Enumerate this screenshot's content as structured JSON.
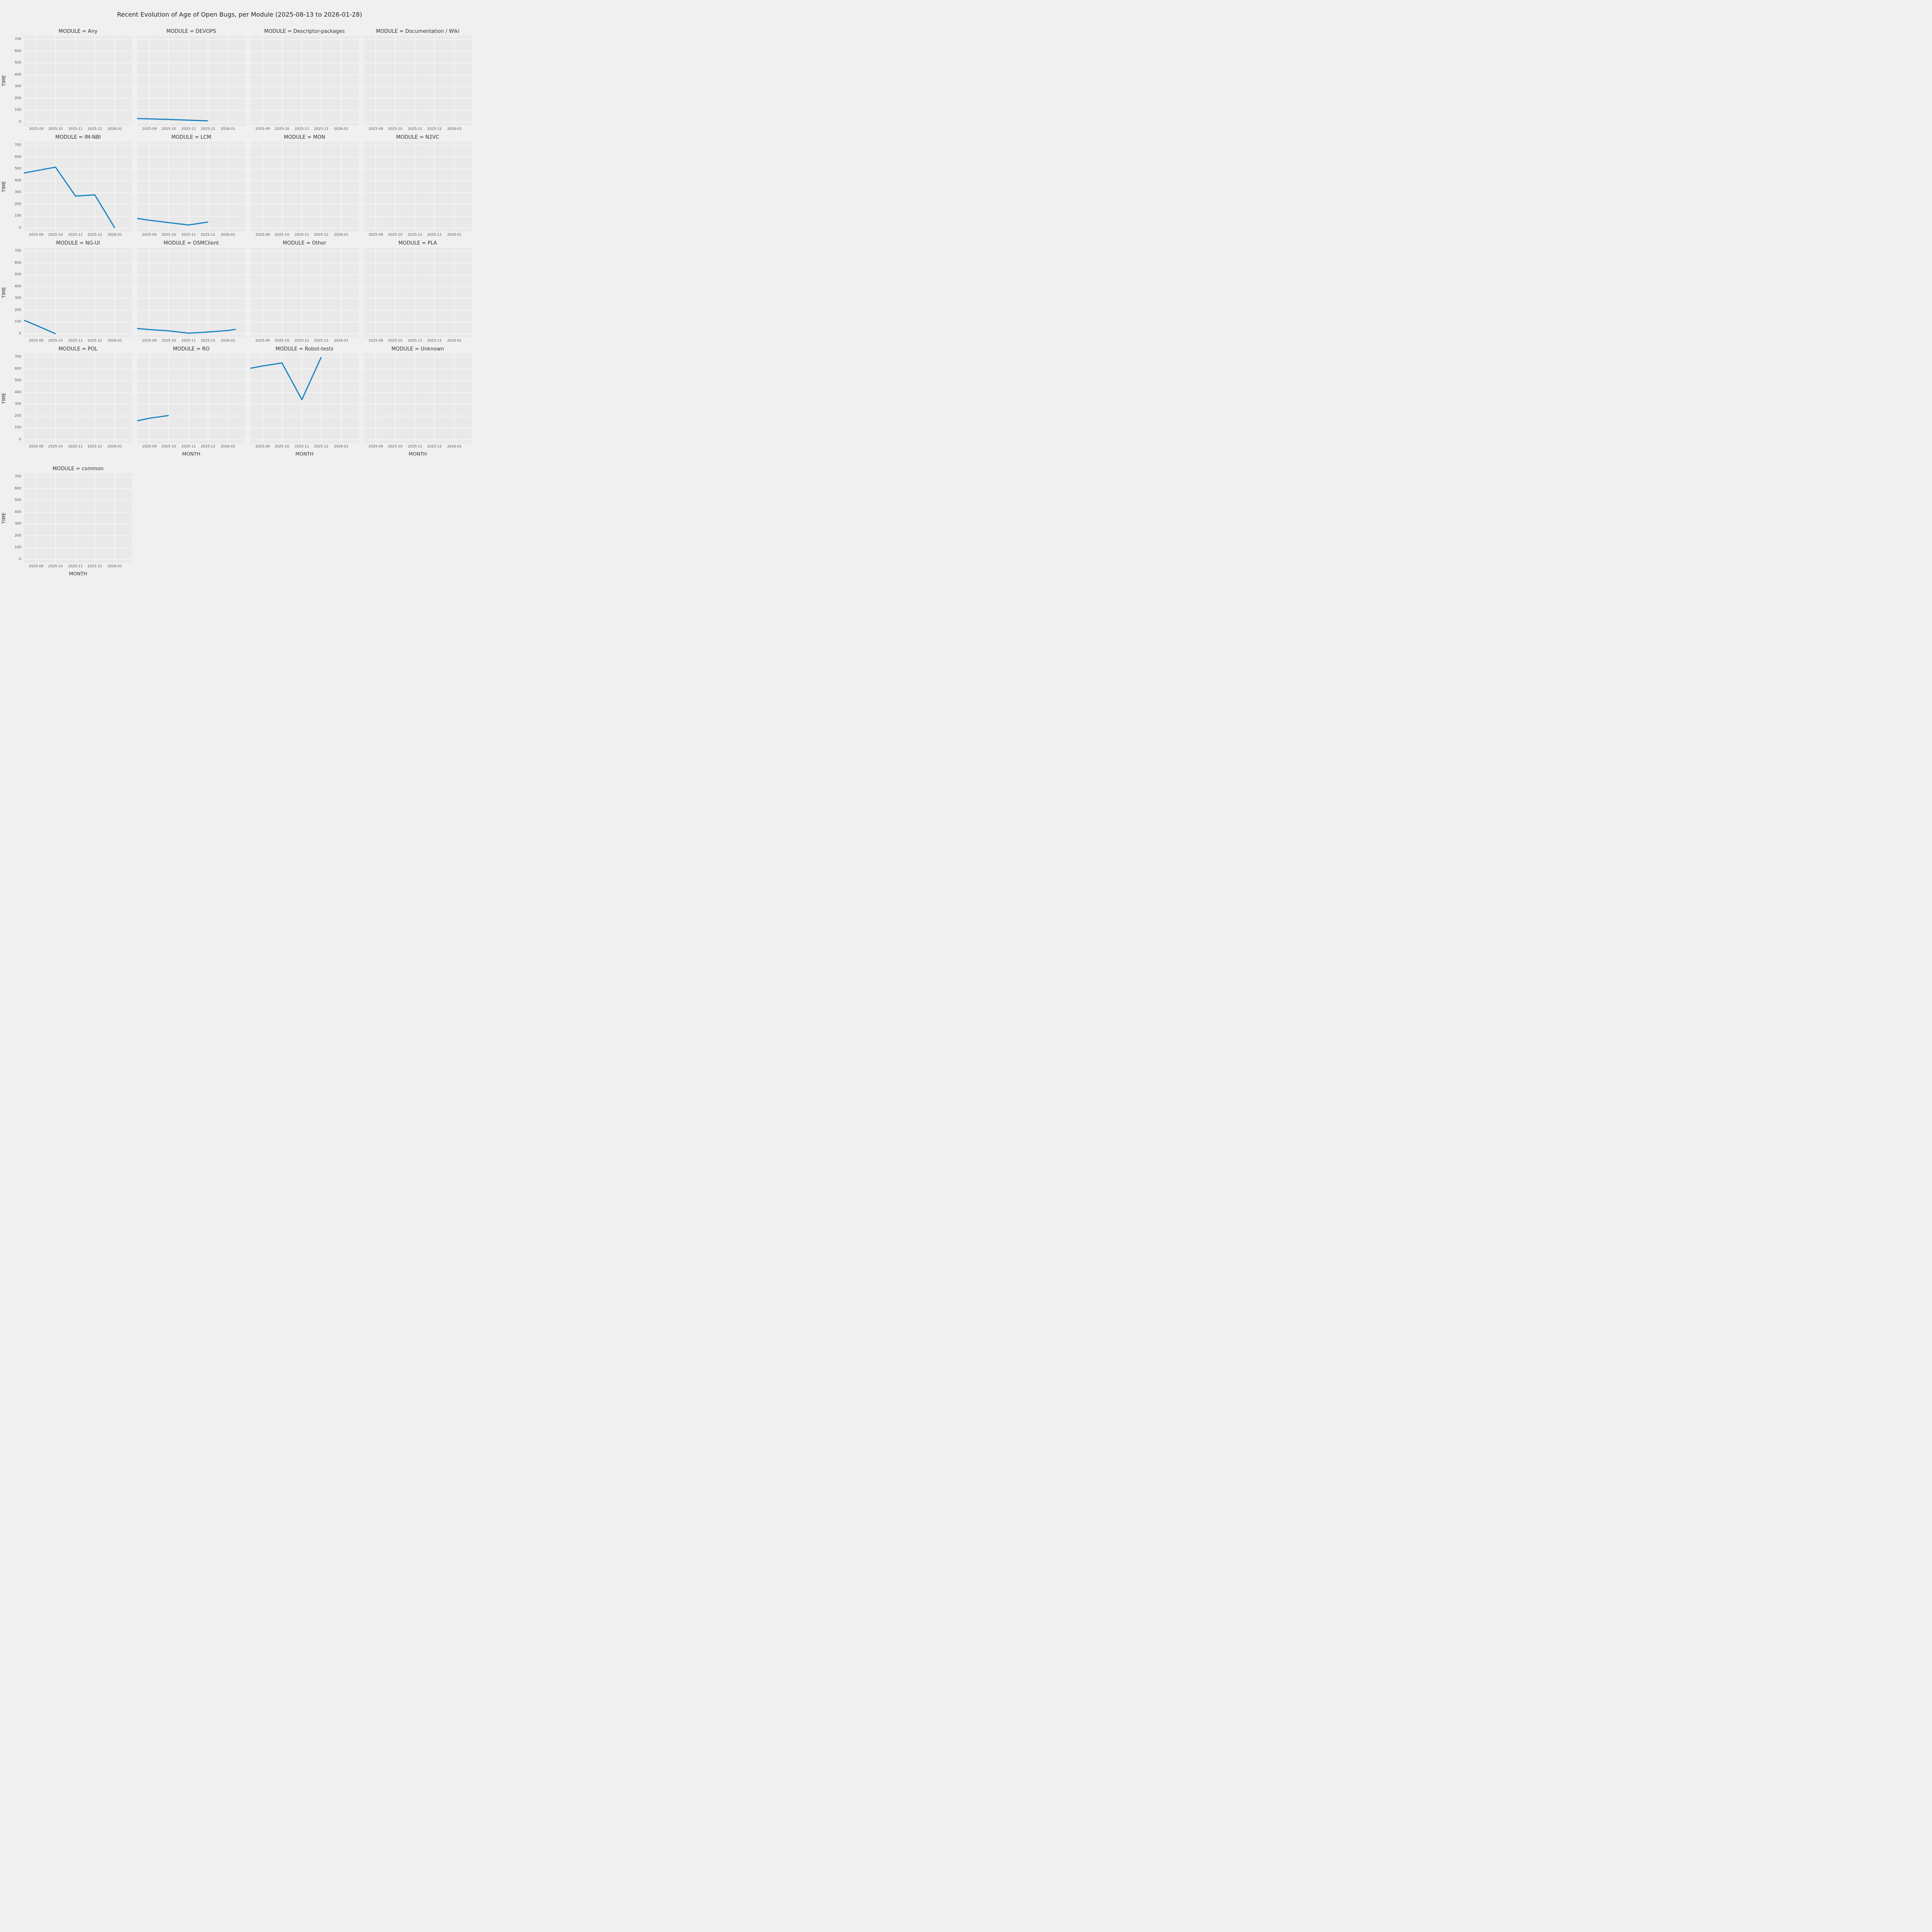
{
  "title": "Recent Evolution of Age of Open Bugs, per Module (2025-08-13 to 2026-01-28)",
  "axes": {
    "x_label": "MONTH",
    "y_label": "TIME",
    "x_domain_days": [
      0,
      168
    ],
    "x_domain_dates": [
      "2025-08-13",
      "2026-01-28"
    ],
    "y_domain": [
      -30,
      730
    ],
    "y_ticks": [
      0,
      100,
      200,
      300,
      400,
      500,
      600,
      700
    ],
    "x_ticks": {
      "t": [
        19,
        49,
        80,
        110,
        141
      ],
      "labels": [
        "2025-09",
        "2025-10",
        "2025-11",
        "2025-12",
        "2026-01"
      ]
    },
    "grid": true
  },
  "style": {
    "figure_background": "#f0f0f0",
    "axes_background": "#e9e9e9",
    "grid_color": "#ffffff",
    "line_color": "#1683c4",
    "tick_color": "#555555",
    "title_color": "#262626"
  },
  "chart_data": {
    "type": "line",
    "facet_by": "MODULE",
    "x_unit": "days since 2025-08-13",
    "columns": 4,
    "facets": [
      {
        "title": "MODULE = Any",
        "x": [],
        "y": []
      },
      {
        "title": "MODULE = DEVOPS",
        "x": [
          0,
          19,
          49,
          80,
          110
        ],
        "y": [
          30,
          27,
          22,
          16,
          10
        ]
      },
      {
        "title": "MODULE = Descriptor-packages",
        "x": [],
        "y": []
      },
      {
        "title": "MODULE = Documentation / Wiki",
        "x": [],
        "y": []
      },
      {
        "title": "MODULE = IM-NBI",
        "x": [
          0,
          19,
          49,
          80,
          110,
          141
        ],
        "y": [
          465,
          485,
          515,
          270,
          280,
          0
        ]
      },
      {
        "title": "MODULE = LCM",
        "x": [
          0,
          19,
          49,
          80,
          110
        ],
        "y": [
          80,
          65,
          45,
          25,
          50
        ]
      },
      {
        "title": "MODULE = MON",
        "x": [],
        "y": []
      },
      {
        "title": "MODULE = N2VC",
        "x": [],
        "y": []
      },
      {
        "title": "MODULE = NG-UI",
        "x": [
          0,
          19,
          49
        ],
        "y": [
          115,
          72,
          0
        ]
      },
      {
        "title": "MODULE = OSMClient",
        "x": [
          0,
          19,
          49,
          80,
          110,
          141,
          153
        ],
        "y": [
          45,
          36,
          25,
          5,
          15,
          28,
          38
        ]
      },
      {
        "title": "MODULE = Other",
        "x": [],
        "y": []
      },
      {
        "title": "MODULE = PLA",
        "x": [],
        "y": []
      },
      {
        "title": "MODULE = POL",
        "x": [],
        "y": []
      },
      {
        "title": "MODULE = RO",
        "x": [
          0,
          19,
          49
        ],
        "y": [
          160,
          182,
          205
        ]
      },
      {
        "title": "MODULE = Robot-tests",
        "x": [
          0,
          19,
          49,
          80,
          110
        ],
        "y": [
          605,
          625,
          650,
          340,
          700
        ]
      },
      {
        "title": "MODULE = Unknown",
        "x": [],
        "y": []
      },
      {
        "title": "MODULE = common",
        "x": [],
        "y": []
      }
    ]
  }
}
